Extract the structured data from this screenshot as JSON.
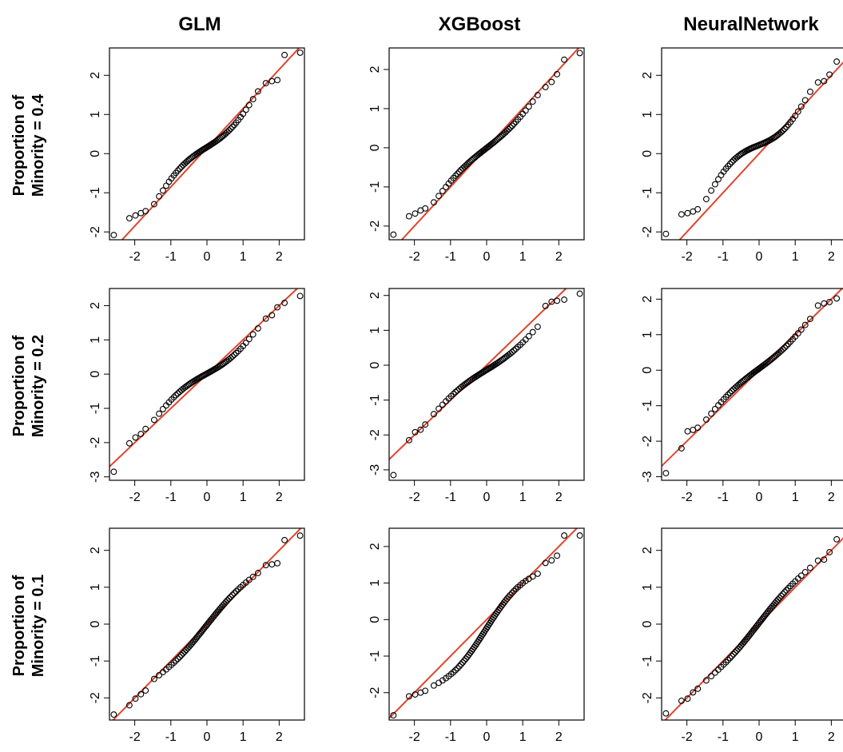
{
  "column_titles": [
    "GLM",
    "XGBoost",
    "NeuralNetwork"
  ],
  "row_titles": [
    {
      "line1": "Proportion of",
      "line2": "Minority = 0.4"
    },
    {
      "line1": "Proportion of",
      "line2": "Minority = 0.2"
    },
    {
      "line1": "Proportion of",
      "line2": "Minority = 0.1"
    }
  ],
  "colors": {
    "points": "#000000",
    "reference_line": "#e0442e",
    "frame": "#000000"
  },
  "chart_data": [
    {
      "type": "scatter",
      "model": "GLM",
      "proportion": "0.4",
      "xlim": [
        -2.7,
        2.7
      ],
      "ylim": [
        -2.2,
        2.7
      ],
      "xticks": [
        -2,
        -1,
        0,
        1,
        2
      ],
      "yticks": [
        -2,
        -1,
        0,
        1,
        2
      ],
      "ref_line": [
        0.15,
        1.0
      ],
      "tail_low": [
        [
          -2.58,
          -2.08
        ],
        [
          -2.15,
          -1.65
        ],
        [
          -1.98,
          -1.58
        ],
        [
          -1.83,
          -1.52
        ],
        [
          -1.7,
          -1.47
        ]
      ],
      "tail_high": [
        [
          1.63,
          1.8
        ],
        [
          1.8,
          1.85
        ],
        [
          1.95,
          1.88
        ],
        [
          2.15,
          2.52
        ],
        [
          2.58,
          2.58
        ]
      ],
      "core": {
        "start": -1.55,
        "end": 1.5,
        "y_start": -1.42,
        "y_end": 1.72,
        "wave": 0.22,
        "n": 58
      }
    },
    {
      "type": "scatter",
      "model": "XGBoost",
      "proportion": "0.4",
      "xlim": [
        -2.7,
        2.7
      ],
      "ylim": [
        -2.35,
        2.55
      ],
      "xticks": [
        -2,
        -1,
        0,
        1,
        2
      ],
      "yticks": [
        -2,
        -1,
        0,
        1,
        2
      ],
      "ref_line": [
        0.0,
        1.0
      ],
      "tail_low": [
        [
          -2.58,
          -2.22
        ],
        [
          -2.15,
          -1.75
        ],
        [
          -1.98,
          -1.68
        ],
        [
          -1.83,
          -1.6
        ],
        [
          -1.7,
          -1.55
        ]
      ],
      "tail_high": [
        [
          1.63,
          1.55
        ],
        [
          1.8,
          1.68
        ],
        [
          1.95,
          1.88
        ],
        [
          2.15,
          2.25
        ],
        [
          2.58,
          2.42
        ]
      ],
      "core": {
        "start": -1.55,
        "end": 1.5,
        "y_start": -1.5,
        "y_end": 1.45,
        "wave": 0.12,
        "n": 58
      }
    },
    {
      "type": "scatter",
      "model": "NeuralNetwork",
      "proportion": "0.4",
      "xlim": [
        -2.7,
        2.7
      ],
      "ylim": [
        -2.2,
        2.7
      ],
      "xticks": [
        -2,
        -1,
        0,
        1,
        2
      ],
      "yticks": [
        -2,
        -1,
        0,
        1,
        2
      ],
      "ref_line": [
        0.0,
        1.0
      ],
      "tail_low": [
        [
          -2.58,
          -2.05
        ],
        [
          -2.15,
          -1.55
        ],
        [
          -1.98,
          -1.52
        ],
        [
          -1.83,
          -1.48
        ],
        [
          -1.7,
          -1.42
        ]
      ],
      "tail_high": [
        [
          1.63,
          1.82
        ],
        [
          1.8,
          1.85
        ],
        [
          1.95,
          2.02
        ],
        [
          2.15,
          2.35
        ],
        [
          2.58,
          2.55
        ]
      ],
      "core": {
        "start": -1.55,
        "end": 1.5,
        "y_start": -1.3,
        "y_end": 1.72,
        "wave": 0.3,
        "n": 58
      }
    },
    {
      "type": "scatter",
      "model": "GLM",
      "proportion": "0.2",
      "xlim": [
        -2.7,
        2.7
      ],
      "ylim": [
        -3.1,
        2.5
      ],
      "xticks": [
        -2,
        -1,
        0,
        1,
        2
      ],
      "yticks": [
        -3,
        -2,
        -1,
        0,
        1,
        2
      ],
      "ref_line": [
        0.0,
        1.0
      ],
      "tail_low": [
        [
          -2.58,
          -2.85
        ],
        [
          -2.15,
          -2.02
        ],
        [
          -1.98,
          -1.85
        ],
        [
          -1.83,
          -1.75
        ],
        [
          -1.7,
          -1.6
        ]
      ],
      "tail_high": [
        [
          1.63,
          1.62
        ],
        [
          1.8,
          1.72
        ],
        [
          1.95,
          1.95
        ],
        [
          2.15,
          2.08
        ],
        [
          2.58,
          2.28
        ]
      ],
      "core": {
        "start": -1.55,
        "end": 1.5,
        "y_start": -1.45,
        "y_end": 1.45,
        "wave": 0.18,
        "n": 58
      }
    },
    {
      "type": "scatter",
      "model": "XGBoost",
      "proportion": "0.2",
      "xlim": [
        -2.7,
        2.7
      ],
      "ylim": [
        -3.3,
        2.2
      ],
      "xticks": [
        -2,
        -1,
        0,
        1,
        2
      ],
      "yticks": [
        -3,
        -2,
        -1,
        0,
        1,
        2
      ],
      "ref_line": [
        0.0,
        1.0
      ],
      "tail_low": [
        [
          -2.58,
          -3.15
        ],
        [
          -2.15,
          -2.15
        ],
        [
          -1.98,
          -1.92
        ],
        [
          -1.83,
          -1.85
        ],
        [
          -1.7,
          -1.7
        ]
      ],
      "tail_high": [
        [
          1.63,
          1.7
        ],
        [
          1.8,
          1.82
        ],
        [
          1.95,
          1.85
        ],
        [
          2.15,
          1.88
        ],
        [
          2.58,
          2.05
        ]
      ],
      "core": {
        "start": -1.55,
        "end": 1.5,
        "y_start": -1.5,
        "y_end": 1.2,
        "wave": 0.12,
        "n": 58
      }
    },
    {
      "type": "scatter",
      "model": "NeuralNetwork",
      "proportion": "0.2",
      "xlim": [
        -2.7,
        2.7
      ],
      "ylim": [
        -3.1,
        2.3
      ],
      "xticks": [
        -2,
        -1,
        0,
        1,
        2
      ],
      "yticks": [
        -3,
        -2,
        -1,
        0,
        1,
        2
      ],
      "ref_line": [
        0.0,
        1.0
      ],
      "tail_low": [
        [
          -2.58,
          -2.9
        ],
        [
          -2.15,
          -2.2
        ],
        [
          -1.98,
          -1.72
        ],
        [
          -1.83,
          -1.68
        ],
        [
          -1.7,
          -1.62
        ]
      ],
      "tail_high": [
        [
          1.63,
          1.82
        ],
        [
          1.8,
          1.88
        ],
        [
          1.95,
          1.92
        ],
        [
          2.15,
          2.02
        ],
        [
          2.58,
          2.15
        ]
      ],
      "core": {
        "start": -1.55,
        "end": 1.5,
        "y_start": -1.5,
        "y_end": 1.55,
        "wave": 0.12,
        "n": 58
      }
    },
    {
      "type": "scatter",
      "model": "GLM",
      "proportion": "0.1",
      "xlim": [
        -2.7,
        2.7
      ],
      "ylim": [
        -2.6,
        2.6
      ],
      "xticks": [
        -2,
        -1,
        0,
        1,
        2
      ],
      "yticks": [
        -2,
        -1,
        0,
        1,
        2
      ],
      "ref_line": [
        0.0,
        1.0
      ],
      "tail_low": [
        [
          -2.58,
          -2.45
        ],
        [
          -2.15,
          -2.2
        ],
        [
          -1.98,
          -2.02
        ],
        [
          -1.83,
          -1.9
        ],
        [
          -1.7,
          -1.8
        ]
      ],
      "tail_high": [
        [
          1.63,
          1.6
        ],
        [
          1.8,
          1.62
        ],
        [
          1.95,
          1.65
        ],
        [
          2.15,
          2.28
        ],
        [
          2.58,
          2.4
        ]
      ],
      "core": {
        "start": -1.55,
        "end": 1.5,
        "y_start": -1.55,
        "y_end": 1.45,
        "wave": -0.12,
        "n": 58
      }
    },
    {
      "type": "scatter",
      "model": "XGBoost",
      "proportion": "0.1",
      "xlim": [
        -2.7,
        2.7
      ],
      "ylim": [
        -2.75,
        2.5
      ],
      "xticks": [
        -2,
        -1,
        0,
        1,
        2
      ],
      "yticks": [
        -2,
        -1,
        0,
        1,
        2
      ],
      "ref_line": [
        0.0,
        1.0
      ],
      "tail_low": [
        [
          -2.58,
          -2.62
        ],
        [
          -2.15,
          -2.1
        ],
        [
          -1.98,
          -2.05
        ],
        [
          -1.83,
          -2.0
        ],
        [
          -1.7,
          -1.95
        ]
      ],
      "tail_high": [
        [
          1.63,
          1.55
        ],
        [
          1.8,
          1.62
        ],
        [
          1.95,
          1.75
        ],
        [
          2.15,
          2.3
        ],
        [
          2.58,
          2.3
        ]
      ],
      "core": {
        "start": -1.55,
        "end": 1.5,
        "y_start": -1.85,
        "y_end": 1.3,
        "wave": -0.25,
        "n": 58
      }
    },
    {
      "type": "scatter",
      "model": "NeuralNetwork",
      "proportion": "0.1",
      "xlim": [
        -2.7,
        2.7
      ],
      "ylim": [
        -2.6,
        2.6
      ],
      "xticks": [
        -2,
        -1,
        0,
        1,
        2
      ],
      "yticks": [
        -2,
        -1,
        0,
        1,
        2
      ],
      "ref_line": [
        0.0,
        1.0
      ],
      "tail_low": [
        [
          -2.58,
          -2.42
        ],
        [
          -2.15,
          -2.08
        ],
        [
          -1.98,
          -2.02
        ],
        [
          -1.83,
          -1.85
        ],
        [
          -1.7,
          -1.75
        ]
      ],
      "tail_high": [
        [
          1.63,
          1.72
        ],
        [
          1.8,
          1.75
        ],
        [
          1.95,
          1.95
        ],
        [
          2.15,
          2.3
        ],
        [
          2.58,
          2.45
        ]
      ],
      "core": {
        "start": -1.55,
        "end": 1.5,
        "y_start": -1.6,
        "y_end": 1.6,
        "wave": -0.1,
        "n": 58
      }
    }
  ]
}
